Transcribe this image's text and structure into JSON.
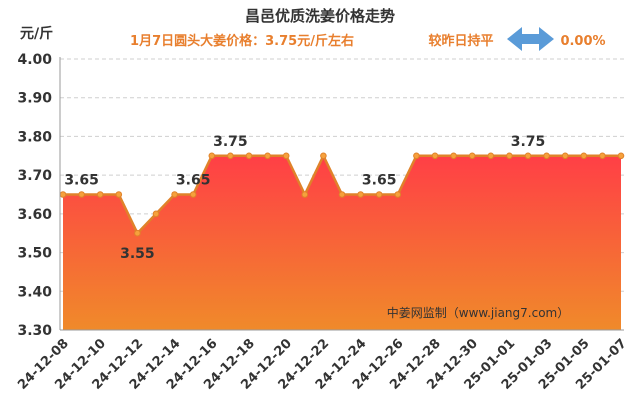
{
  "chart_data": {
    "type": "area",
    "title": "昌邑优质洗姜价格走势",
    "subtitle": "1月7日圆头大姜价格：3.75元/斤左右",
    "comparison": {
      "label": "较昨日持平",
      "value": "0.00%",
      "arrow_icon": "double-arrow-icon"
    },
    "ylabel": "元/斤",
    "ylim": [
      3.3,
      4.0
    ],
    "yticks": [
      "4.00",
      "3.90",
      "3.80",
      "3.70",
      "3.60",
      "3.50",
      "3.40",
      "3.30"
    ],
    "x": [
      "24-12-08",
      "24-12-09",
      "24-12-10",
      "24-12-11",
      "24-12-12",
      "24-12-13",
      "24-12-14",
      "24-12-15",
      "24-12-16",
      "24-12-17",
      "24-12-18",
      "24-12-19",
      "24-12-20",
      "24-12-21",
      "24-12-22",
      "24-12-23",
      "24-12-24",
      "24-12-25",
      "24-12-26",
      "24-12-27",
      "24-12-28",
      "24-12-29",
      "24-12-30",
      "24-12-31",
      "25-01-01",
      "25-01-02",
      "25-01-03",
      "25-01-04",
      "25-01-05",
      "25-01-06",
      "25-01-07"
    ],
    "xticks_shown": [
      "24-12-08",
      "24-12-10",
      "24-12-12",
      "24-12-14",
      "24-12-16",
      "24-12-18",
      "24-12-20",
      "24-12-22",
      "24-12-24",
      "24-12-26",
      "24-12-28",
      "24-12-30",
      "25-01-01",
      "25-01-03",
      "25-01-05",
      "25-01-07"
    ],
    "values": [
      3.65,
      3.65,
      3.65,
      3.65,
      3.55,
      3.6,
      3.65,
      3.65,
      3.75,
      3.75,
      3.75,
      3.75,
      3.75,
      3.65,
      3.75,
      3.65,
      3.65,
      3.65,
      3.65,
      3.75,
      3.75,
      3.75,
      3.75,
      3.75,
      3.75,
      3.75,
      3.75,
      3.75,
      3.75,
      3.75,
      3.75
    ],
    "data_labels": [
      {
        "index": 1,
        "text": "3.65"
      },
      {
        "index": 4,
        "text": "3.55"
      },
      {
        "index": 7,
        "text": "3.65"
      },
      {
        "index": 9,
        "text": "3.75"
      },
      {
        "index": 17,
        "text": "3.65"
      },
      {
        "index": 25,
        "text": "3.75"
      }
    ],
    "watermark": "中姜网监制（www.jiang7.com）",
    "grid": true,
    "colors": {
      "line": "#e0822a",
      "marker_fill": "#f6a13c",
      "area_top": "#ff3f46",
      "area_bottom": "#f08a2a",
      "title": "#333333",
      "subtitle": "#e87f2e",
      "arrow": "#5a9bd8",
      "grid": "#cfcfcf"
    }
  }
}
